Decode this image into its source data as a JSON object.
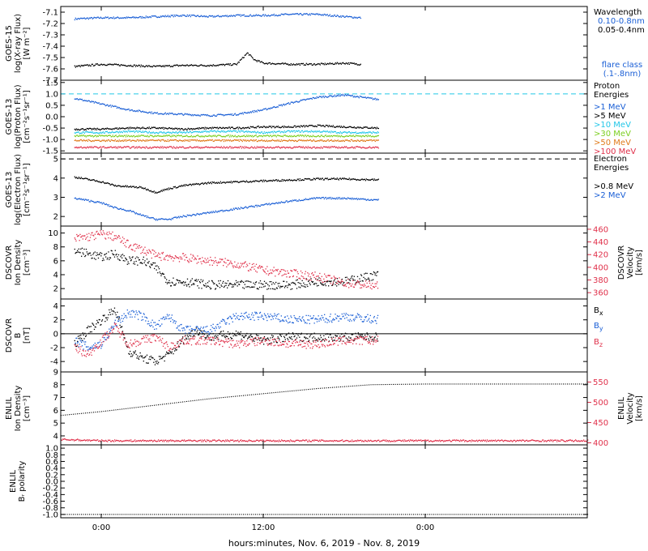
{
  "chart_data": {
    "type": "line",
    "xlabel": "hours:minutes, Nov.  6, 2019 - Nov.  8, 2019",
    "x_range_hours": [
      -3.0,
      36.0
    ],
    "x_ticks": [
      {
        "label": "0:00",
        "hour": 0
      },
      {
        "label": "12:00",
        "hour": 12
      },
      {
        "label": "0:00",
        "hour": 24
      }
    ],
    "panels": [
      {
        "id": "xray",
        "ylabel_lines": [
          "GOES-15",
          "log(X-ray Flux)",
          "[W m⁻²]"
        ],
        "ylim": [
          -7.7,
          -7.05
        ],
        "yticks": [
          "-7.1",
          "-7.2",
          "-7.3",
          "-7.4",
          "-7.5",
          "-7.6",
          "-7.7"
        ],
        "legend_title": [
          "Wavelength"
        ],
        "legend_note": [
          "flare class",
          "(.1-.8nm)"
        ],
        "note_color": "#1a5fd6",
        "series": [
          {
            "name": "0.10-0.8nm",
            "color": "#1a5fd6",
            "x": [
              -2,
              0,
              2,
              4,
              6,
              8,
              10,
              12,
              14,
              16,
              18,
              19.2
            ],
            "y": [
              -7.16,
              -7.15,
              -7.15,
              -7.14,
              -7.13,
              -7.14,
              -7.13,
              -7.13,
              -7.12,
              -7.12,
              -7.14,
              -7.15
            ]
          },
          {
            "name": "0.05-0.4nm",
            "color": "#000000",
            "x": [
              -2,
              0,
              2,
              4,
              6,
              8,
              10,
              10.8,
              11.3,
              12,
              14,
              16,
              18,
              19.2
            ],
            "y": [
              -7.58,
              -7.56,
              -7.57,
              -7.58,
              -7.57,
              -7.57,
              -7.56,
              -7.46,
              -7.52,
              -7.55,
              -7.56,
              -7.56,
              -7.55,
              -7.56
            ]
          }
        ]
      },
      {
        "id": "proton",
        "ylabel_lines": [
          "GOES-13",
          "log(Proton Flux)",
          "[cm⁻²s⁻¹sr⁻¹]"
        ],
        "ylim": [
          -1.6,
          1.6
        ],
        "yticks": [
          "1.5",
          "1.0",
          "0.5",
          "0.0",
          "-0.5",
          "-1.0",
          "-1.5"
        ],
        "legend_title": [
          "Proton",
          "Energies"
        ],
        "ref_line": {
          "y": 1.0,
          "color": "#22c6e8"
        },
        "series": [
          {
            "name": ">1 MeV",
            "color": "#1a5fd6",
            "x": [
              -2,
              0,
              2,
              4,
              6,
              8,
              10,
              12,
              14,
              16,
              18,
              20.5
            ],
            "y": [
              0.8,
              0.55,
              0.3,
              0.15,
              0.1,
              0.05,
              0.1,
              0.3,
              0.6,
              0.85,
              0.95,
              0.75
            ]
          },
          {
            "name": ">5 MeV",
            "color": "#000000",
            "x": [
              -2,
              0,
              2,
              4,
              6,
              8,
              10,
              12,
              14,
              16,
              18,
              20.5
            ],
            "y": [
              -0.55,
              -0.55,
              -0.5,
              -0.5,
              -0.55,
              -0.5,
              -0.5,
              -0.45,
              -0.45,
              -0.4,
              -0.45,
              -0.5
            ]
          },
          {
            "name": ">10 MeV",
            "color": "#22c6e8",
            "x": [
              -2,
              0,
              2,
              4,
              6,
              8,
              10,
              12,
              14,
              16,
              18,
              20.5
            ],
            "y": [
              -0.7,
              -0.7,
              -0.65,
              -0.7,
              -0.7,
              -0.65,
              -0.65,
              -0.7,
              -0.65,
              -0.65,
              -0.7,
              -0.7
            ]
          },
          {
            "name": ">30 MeV",
            "color": "#7ccf20",
            "x": [
              -2,
              0,
              2,
              4,
              6,
              8,
              10,
              12,
              14,
              16,
              18,
              20.5
            ],
            "y": [
              -0.85,
              -0.85,
              -0.85,
              -0.85,
              -0.85,
              -0.85,
              -0.85,
              -0.85,
              -0.85,
              -0.85,
              -0.85,
              -0.85
            ]
          },
          {
            "name": ">50 MeV",
            "color": "#e07a1a",
            "x": [
              -2,
              0,
              2,
              4,
              6,
              8,
              10,
              12,
              14,
              16,
              18,
              20.5
            ],
            "y": [
              -1.05,
              -1.05,
              -1.05,
              -1.05,
              -1.05,
              -1.05,
              -1.05,
              -1.05,
              -1.05,
              -1.05,
              -1.05,
              -1.05
            ]
          },
          {
            "name": ">100 MeV",
            "color": "#e0304a",
            "x": [
              -2,
              0,
              2,
              4,
              6,
              8,
              10,
              12,
              14,
              16,
              18,
              20.5
            ],
            "y": [
              -1.35,
              -1.35,
              -1.35,
              -1.35,
              -1.35,
              -1.35,
              -1.35,
              -1.35,
              -1.35,
              -1.35,
              -1.35,
              -1.35
            ]
          }
        ]
      },
      {
        "id": "electron",
        "ylabel_lines": [
          "GOES-13",
          "log(Electron Flux)",
          "[cm⁻²s⁻¹sr⁻¹]"
        ],
        "ylim": [
          1.5,
          5.3
        ],
        "yticks": [
          "5",
          "4",
          "3",
          "2"
        ],
        "legend_title": [
          "Electron",
          "Energies"
        ],
        "ref_line": {
          "y": 5.0,
          "color": "#000000"
        },
        "series": [
          {
            "name": ">0.8 MeV",
            "color": "#000000",
            "x": [
              -2,
              0,
              1,
              3,
              4,
              5,
              6,
              8,
              10,
              12,
              14,
              16,
              18,
              20.5
            ],
            "y": [
              4.05,
              3.8,
              3.6,
              3.5,
              3.25,
              3.45,
              3.6,
              3.75,
              3.8,
              3.85,
              3.9,
              3.95,
              3.95,
              3.9
            ]
          },
          {
            "name": ">2 MeV",
            "color": "#1a5fd6",
            "x": [
              -2,
              0,
              1,
              2,
              3,
              4,
              5,
              6,
              8,
              10,
              12,
              14,
              16,
              18,
              20.5
            ],
            "y": [
              2.95,
              2.7,
              2.45,
              2.3,
              2.05,
              1.85,
              1.85,
              2.0,
              2.2,
              2.4,
              2.6,
              2.8,
              2.95,
              2.95,
              2.85
            ]
          }
        ]
      },
      {
        "id": "dscovr-density",
        "ylabel_lines": [
          "DSCOVR",
          "Ion Density",
          "[cm⁻³]"
        ],
        "ylim": [
          0.5,
          11
        ],
        "yticks": [
          "10",
          "8",
          "6",
          "4",
          "2"
        ],
        "right_axis": {
          "ylabel_lines": [
            "DSCOVR",
            "Velocity",
            "[km/s]"
          ],
          "ylim": [
            350,
            465
          ],
          "yticks": [
            "460",
            "440",
            "420",
            "400",
            "380",
            "360"
          ],
          "color": "#e0304a"
        },
        "series": [
          {
            "name": "Ion Density",
            "color": "#000000",
            "axis": "left",
            "x": [
              -2,
              -1,
              0,
              1,
              2,
              3,
              4,
              5,
              6,
              8,
              10,
              12,
              14,
              16,
              18,
              20.5
            ],
            "y": [
              7.5,
              7.0,
              6.5,
              7.0,
              6.0,
              6.0,
              5.0,
              3.0,
              3.0,
              2.5,
              2.5,
              2.5,
              2.5,
              3.0,
              3.0,
              4.0
            ]
          },
          {
            "name": "Velocity",
            "color": "#e0304a",
            "axis": "right",
            "x": [
              -2,
              -1,
              0,
              1,
              2,
              3,
              4,
              6,
              8,
              10,
              12,
              14,
              16,
              18,
              20.5
            ],
            "y": [
              445,
              448,
              452,
              448,
              435,
              428,
              418,
              415,
              410,
              405,
              395,
              390,
              385,
              375,
              370
            ]
          }
        ]
      },
      {
        "id": "dscovr-b",
        "ylabel_lines": [
          "DSCOVR",
          "B",
          "[nT]"
        ],
        "ylim": [
          -5.5,
          5
        ],
        "yticks": [
          "4",
          "2",
          "0",
          "-2",
          "-4"
        ],
        "zero_line": true,
        "legend_entries": [
          {
            "base": "B",
            "sub": "x",
            "color": "#000000"
          },
          {
            "base": "B",
            "sub": "y",
            "color": "#1a5fd6"
          },
          {
            "base": "B",
            "sub": "z",
            "color": "#e0304a"
          }
        ],
        "series": [
          {
            "name": "Bx",
            "color": "#000000",
            "x": [
              -2,
              -1,
              0,
              1,
              2,
              3,
              4,
              5,
              6,
              7,
              8,
              10,
              12,
              14,
              16,
              18,
              20.5
            ],
            "y": [
              -1.5,
              0.5,
              2.0,
              3.5,
              -2.5,
              -3.5,
              -4.0,
              -3.0,
              -1.0,
              0.5,
              -0.5,
              0.0,
              -1.0,
              -0.5,
              -0.5,
              -0.5,
              -0.5
            ]
          },
          {
            "name": "By",
            "color": "#1a5fd6",
            "x": [
              -2,
              -1,
              0,
              1,
              2,
              3,
              4,
              5,
              6,
              8,
              10,
              12,
              14,
              16,
              18,
              20.5
            ],
            "y": [
              -1.0,
              -2.0,
              -1.5,
              1.5,
              3.0,
              2.5,
              1.0,
              2.5,
              0.5,
              0.5,
              2.5,
              2.5,
              2.0,
              2.0,
              2.5,
              2.0
            ]
          },
          {
            "name": "Bz",
            "color": "#e0304a",
            "x": [
              -2,
              -1,
              0,
              1,
              2,
              3,
              4,
              5,
              6,
              8,
              10,
              12,
              14,
              16,
              18,
              20.5
            ],
            "y": [
              -2.0,
              -3.0,
              -1.0,
              1.0,
              -1.5,
              -1.0,
              -0.5,
              -2.0,
              -1.0,
              -1.0,
              -1.5,
              -1.0,
              -1.5,
              -1.5,
              -1.0,
              -1.0
            ]
          }
        ]
      },
      {
        "id": "enlil-density",
        "ylabel_lines": [
          "ENLIL",
          "Ion Density",
          "[cm⁻³]"
        ],
        "ylim": [
          3.3,
          9
        ],
        "yticks": [
          "9",
          "8",
          "7",
          "6",
          "5",
          "4"
        ],
        "right_axis": {
          "ylabel_lines": [
            "ENLIL",
            "Velocity",
            "[km/s]"
          ],
          "ylim": [
            395,
            575
          ],
          "yticks": [
            "550",
            "500",
            "450",
            "400"
          ],
          "color": "#e0304a"
        },
        "series": [
          {
            "name": "Ion Density",
            "color": "#000000",
            "axis": "left",
            "dotted": true,
            "x": [
              -3,
              0,
              4,
              8,
              12,
              16,
              20,
              24,
              28,
              32,
              36
            ],
            "y": [
              5.6,
              5.9,
              6.4,
              6.9,
              7.3,
              7.7,
              8.0,
              8.05,
              8.05,
              8.05,
              8.05
            ]
          },
          {
            "name": "Velocity",
            "color": "#e0304a",
            "axis": "right",
            "x": [
              -3,
              0,
              6,
              12,
              18,
              24,
              30,
              36
            ],
            "y": [
              408,
              405,
              405,
              405,
              405,
              405,
              405,
              405
            ]
          }
        ]
      },
      {
        "id": "enlil-polarity",
        "ylabel_lines": [
          "ENLIL",
          "Bᵣ polarity"
        ],
        "ylim": [
          -1.1,
          1.1
        ],
        "yticks": [
          "1.0",
          "0.8",
          "0.6",
          "0.4",
          "0.2",
          "0.0",
          "-0.2",
          "-0.4",
          "-0.6",
          "-0.8",
          "-1.0"
        ],
        "series": [
          {
            "name": "Br polarity",
            "color": "#000000",
            "dotted": true,
            "x": [
              -3,
              0,
              6,
              12,
              18,
              24,
              30,
              36
            ],
            "y": [
              -1.0,
              -1.0,
              -1.0,
              -1.0,
              -1.0,
              -1.0,
              -1.0,
              -1.0
            ]
          }
        ]
      }
    ]
  }
}
